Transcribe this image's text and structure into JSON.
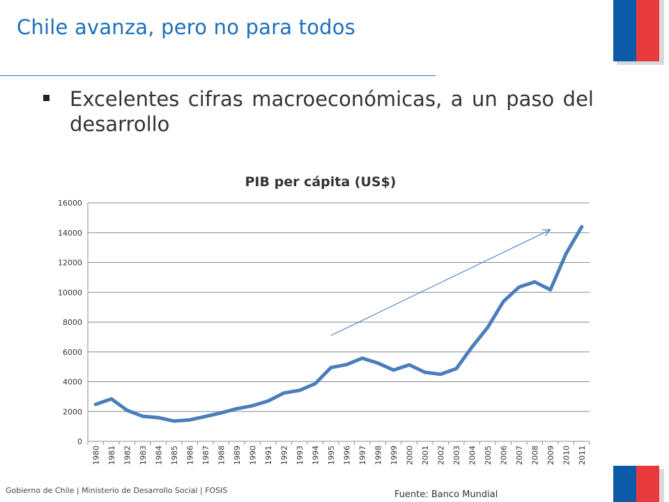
{
  "header": {
    "title": "Chile avanza, pero no para todos"
  },
  "bullets": [
    "Excelentes cifras macroeconómicas, a un paso del desarrollo"
  ],
  "chart_data": {
    "type": "line",
    "title": "PIB per cápita (US$)",
    "xlabel": "",
    "ylabel": "",
    "ylim": [
      0,
      16000
    ],
    "yticks": [
      0,
      2000,
      4000,
      6000,
      8000,
      10000,
      12000,
      14000,
      16000
    ],
    "grid": true,
    "legend": "none",
    "categories": [
      "1980",
      "1981",
      "1982",
      "1983",
      "1984",
      "1985",
      "1986",
      "1987",
      "1988",
      "1989",
      "1990",
      "1991",
      "1992",
      "1993",
      "1994",
      "1995",
      "1996",
      "1997",
      "1998",
      "1999",
      "2000",
      "2001",
      "2002",
      "2003",
      "2004",
      "2005",
      "2006",
      "2007",
      "2008",
      "2009",
      "2010",
      "2011"
    ],
    "series": [
      {
        "values": [
          2480,
          2850,
          2080,
          1680,
          1590,
          1360,
          1440,
          1670,
          1910,
          2190,
          2390,
          2710,
          3240,
          3420,
          3870,
          4950,
          5150,
          5580,
          5250,
          4780,
          5130,
          4630,
          4500,
          4880,
          6330,
          7640,
          9380,
          10350,
          10700,
          10170,
          12600,
          14400
        ],
        "color": "#4a7ebb"
      }
    ],
    "annotations": [
      {
        "type": "trend-arrow",
        "from": [
          "1995",
          7100
        ],
        "to": [
          "2009",
          14200
        ],
        "color": "#4a7ebb"
      }
    ]
  },
  "footer": {
    "text": "Gobierno de Chile | Ministerio de Desarrollo Social | FOSIS"
  },
  "source": {
    "text": "Fuente: Banco Mundial"
  },
  "colors": {
    "title": "#1a6fbd",
    "line": "#4a7ebb",
    "flag_blue": "#0d5ba8",
    "flag_red": "#e8393c"
  }
}
